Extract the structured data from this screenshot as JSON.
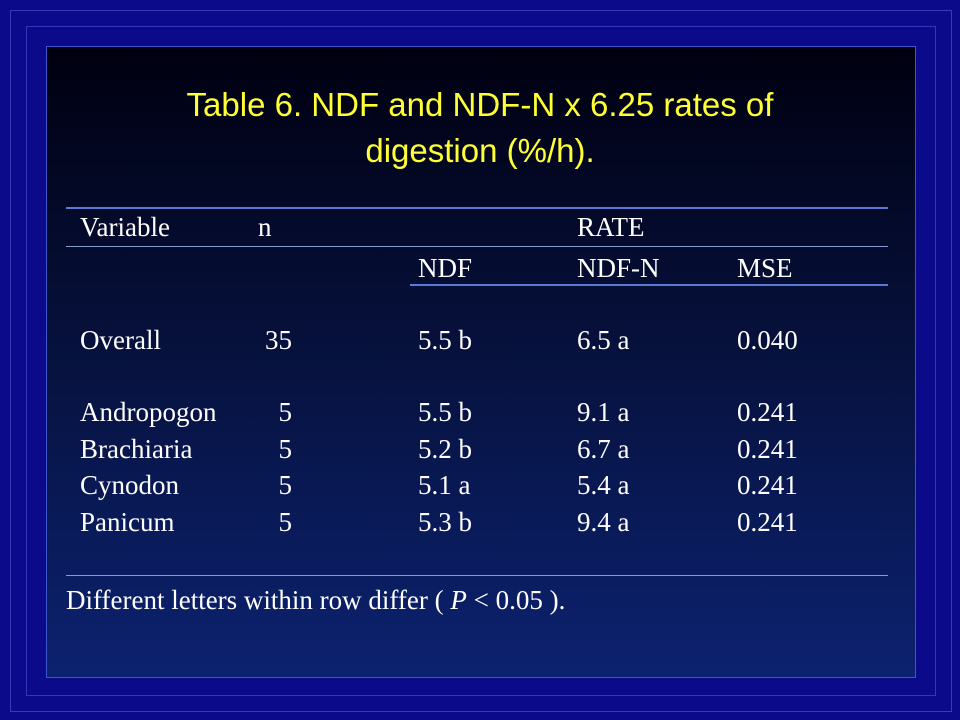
{
  "title": {
    "line1": "Table 6. NDF and NDF-N x 6.25 rates of",
    "line2": "digestion (%/h)."
  },
  "table": {
    "header": {
      "variable": "Variable",
      "n": "n",
      "rate": "RATE",
      "ndf": "NDF",
      "ndf_n": "NDF-N",
      "mse": "MSE"
    },
    "rows": [
      {
        "variable": "Overall",
        "n": "35",
        "ndf": "5.5 b",
        "ndf_n": "6.5 a",
        "mse": "0.040"
      },
      {
        "variable": "Andropogon",
        "n": "5",
        "ndf": "5.5 b",
        "ndf_n": "9.1 a",
        "mse": "0.241"
      },
      {
        "variable": "Brachiaria",
        "n": "5",
        "ndf": "5.2 b",
        "ndf_n": "6.7 a",
        "mse": "0.241"
      },
      {
        "variable": "Cynodon",
        "n": "5",
        "ndf": "5.1 a",
        "ndf_n": "5.4 a",
        "mse": "0.241"
      },
      {
        "variable": "Panicum",
        "n": "5",
        "ndf": "5.3 b",
        "ndf_n": "9.4 a",
        "mse": "0.241"
      }
    ]
  },
  "footnote": {
    "prefix": "Different letters within row differ ( ",
    "p": "P",
    "suffix": " < 0.05 )."
  },
  "colors": {
    "background": "#0a0a8a",
    "title": "#ffff33",
    "text": "#ffffff",
    "rule": "#5b7ad8"
  }
}
